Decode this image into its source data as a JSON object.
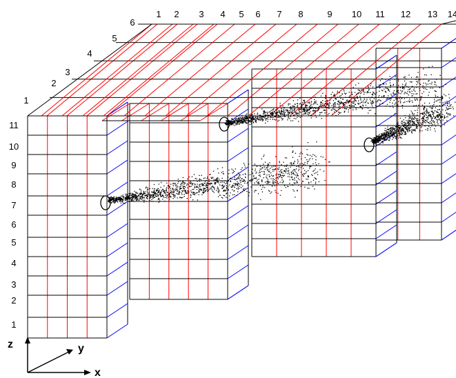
{
  "diagram": {
    "x_ticks": [
      "1",
      "2",
      "3",
      "4",
      "5",
      "6",
      "7",
      "8",
      "9",
      "10",
      "11",
      "12",
      "13",
      "14"
    ],
    "y_ticks": [
      "1",
      "2",
      "3",
      "4",
      "5",
      "6"
    ],
    "z_ticks": [
      "1",
      "2",
      "3",
      "4",
      "5",
      "6",
      "7",
      "8",
      "9",
      "10",
      "11"
    ],
    "axes": {
      "x": "x",
      "y": "y",
      "z": "z"
    },
    "colors": {
      "x_lines": "#ff0000",
      "y_lines": "#0000ff",
      "edges": "#000000",
      "particles": "#000000"
    },
    "sources": 3
  }
}
